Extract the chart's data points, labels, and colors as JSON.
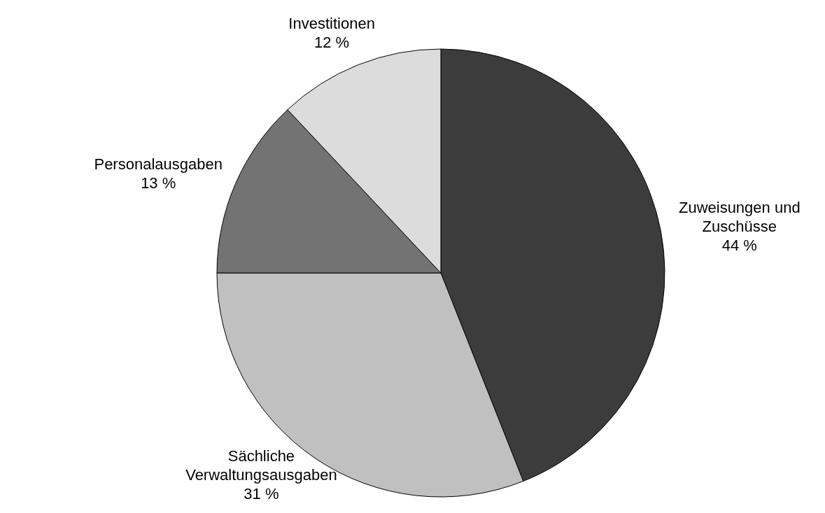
{
  "chart_data": {
    "type": "pie",
    "categories": [
      "Zuweisungen und Zuschüsse",
      "Sächliche Verwaltungsausgaben",
      "Personalausgaben",
      "Investitionen"
    ],
    "values": [
      44,
      31,
      13,
      12
    ],
    "colors": [
      "#3c3c3c",
      "#c0c0c0",
      "#737373",
      "#dcdcdc"
    ],
    "value_labels": [
      "44 %",
      "31 %",
      "13 %",
      "12 %"
    ]
  }
}
